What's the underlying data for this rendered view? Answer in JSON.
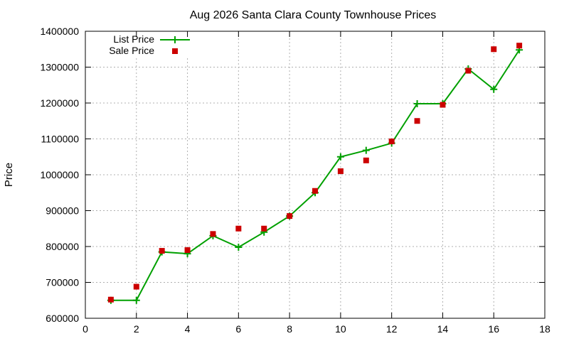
{
  "chart_data": {
    "type": "line",
    "title": "Aug 2026 Santa Clara County Townhouse Prices",
    "xlabel": "",
    "ylabel": "Price",
    "xlim": [
      0,
      18
    ],
    "ylim": [
      600000,
      1400000
    ],
    "xticks": [
      0,
      2,
      4,
      6,
      8,
      10,
      12,
      14,
      16,
      18
    ],
    "yticks": [
      600000,
      700000,
      800000,
      900000,
      1000000,
      1100000,
      1200000,
      1300000,
      1400000
    ],
    "grid": true,
    "legend_position": "top-left",
    "series": [
      {
        "name": "List Price",
        "style": "line-with-plus-markers",
        "color": "#00a000",
        "x": [
          1,
          2,
          3,
          4,
          5,
          6,
          7,
          8,
          9,
          10,
          11,
          12,
          13,
          14,
          15,
          16,
          17
        ],
        "y": [
          650000,
          650000,
          785000,
          780000,
          830000,
          798000,
          840000,
          885000,
          950000,
          1050000,
          1068000,
          1088000,
          1198000,
          1198000,
          1295000,
          1238000,
          1348000
        ]
      },
      {
        "name": "Sale Price",
        "style": "square-markers",
        "color": "#cc0000",
        "x": [
          1,
          2,
          3,
          4,
          5,
          6,
          7,
          8,
          9,
          10,
          11,
          12,
          13,
          14,
          15,
          16,
          17
        ],
        "y": [
          652000,
          688000,
          788000,
          790000,
          835000,
          850000,
          850000,
          885000,
          955000,
          1010000,
          1040000,
          1093000,
          1150000,
          1195000,
          1290000,
          1350000,
          1360000
        ]
      }
    ]
  }
}
